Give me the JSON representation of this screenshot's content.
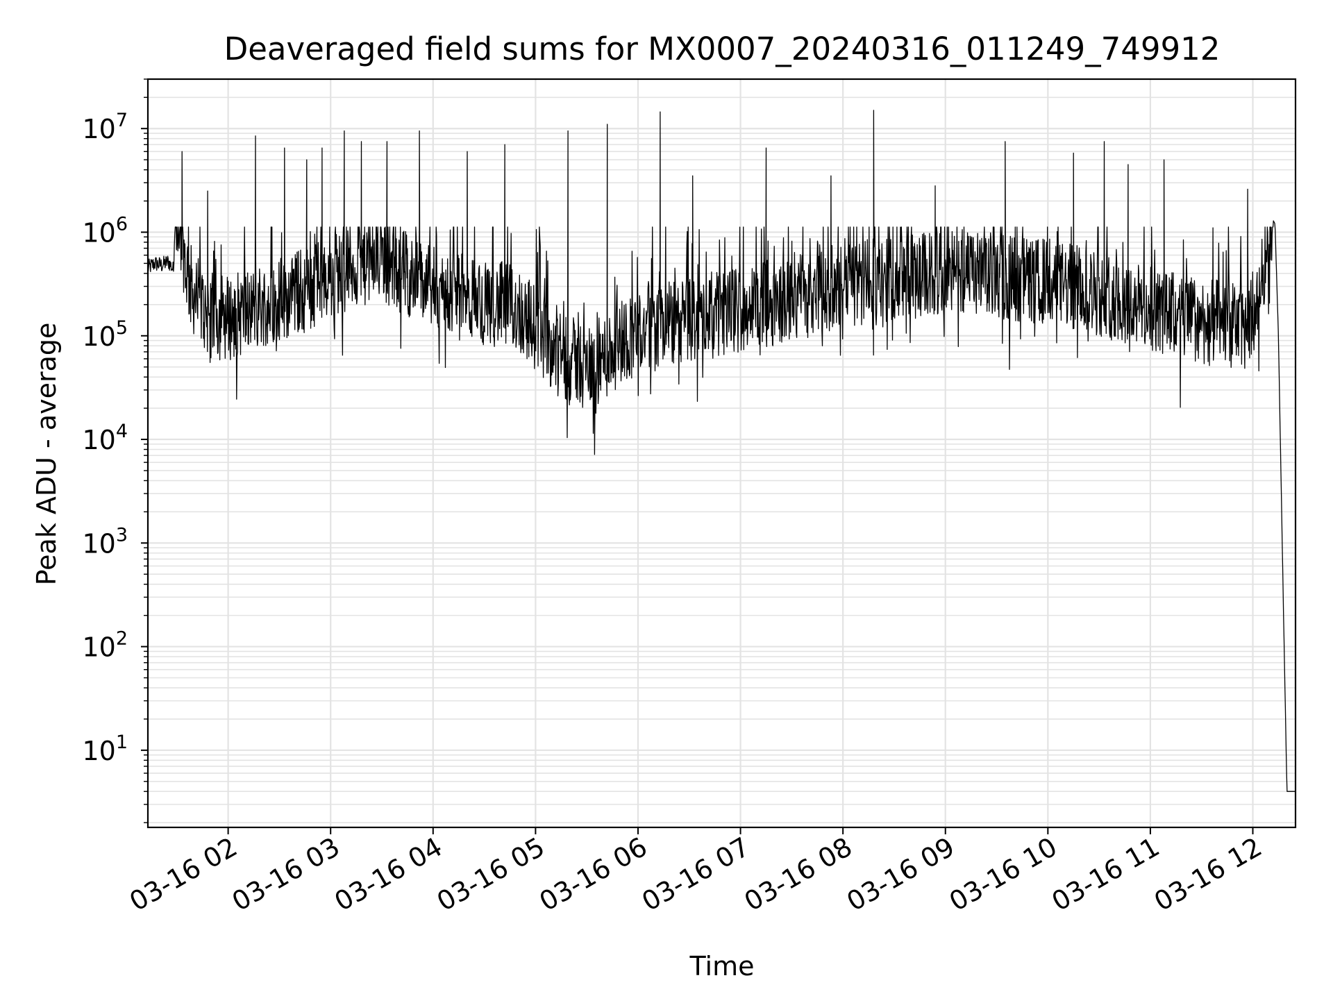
{
  "chart_data": {
    "type": "line",
    "title": "Deaveraged field sums for MX0007_20240316_011249_749912",
    "xlabel": "Time",
    "ylabel": "Peak ADU - average",
    "yscale": "log",
    "ylim": [
      1.8,
      30000000
    ],
    "xlim": [
      "2024-03-16T01:13:00",
      "2024-03-16T12:25:00"
    ],
    "grid": true,
    "legend": "none",
    "line_color": "#000000",
    "grid_color": "#e3e3e3",
    "x_ticks": [
      {
        "t": "2024-03-16T02:00:00",
        "label": "03-16 02"
      },
      {
        "t": "2024-03-16T03:00:00",
        "label": "03-16 03"
      },
      {
        "t": "2024-03-16T04:00:00",
        "label": "03-16 04"
      },
      {
        "t": "2024-03-16T05:00:00",
        "label": "03-16 05"
      },
      {
        "t": "2024-03-16T06:00:00",
        "label": "03-16 06"
      },
      {
        "t": "2024-03-16T07:00:00",
        "label": "03-16 07"
      },
      {
        "t": "2024-03-16T08:00:00",
        "label": "03-16 08"
      },
      {
        "t": "2024-03-16T09:00:00",
        "label": "03-16 09"
      },
      {
        "t": "2024-03-16T10:00:00",
        "label": "03-16 10"
      },
      {
        "t": "2024-03-16T11:00:00",
        "label": "03-16 11"
      },
      {
        "t": "2024-03-16T12:00:00",
        "label": "03-16 12"
      }
    ],
    "y_ticks": [
      {
        "value": 10,
        "base": "10",
        "exp": "1"
      },
      {
        "value": 100,
        "base": "10",
        "exp": "2"
      },
      {
        "value": 1000,
        "base": "10",
        "exp": "3"
      },
      {
        "value": 10000,
        "base": "10",
        "exp": "4"
      },
      {
        "value": 100000,
        "base": "10",
        "exp": "5"
      },
      {
        "value": 1000000,
        "base": "10",
        "exp": "6"
      },
      {
        "value": 10000000,
        "base": "10",
        "exp": "7"
      }
    ],
    "series": [
      {
        "x": [
          "2024-03-16T01:13:00",
          "2024-03-16T01:17:00",
          "2024-03-16T01:21:00",
          "2024-03-16T01:25:00",
          "2024-03-16T01:28:00",
          "2024-03-16T01:29:00",
          "2024-03-16T01:31:00",
          "2024-03-16T01:33:00",
          "2024-03-16T01:35:00",
          "2024-03-16T01:38:00",
          "2024-03-16T01:42:00",
          "2024-03-16T01:46:00",
          "2024-03-16T01:50:00",
          "2024-03-16T01:55:00",
          "2024-03-16T02:00:00",
          "2024-03-16T02:10:00",
          "2024-03-16T02:20:00",
          "2024-03-16T02:30:00",
          "2024-03-16T02:40:00",
          "2024-03-16T02:50:00",
          "2024-03-16T03:00:00",
          "2024-03-16T03:10:00",
          "2024-03-16T03:20:00",
          "2024-03-16T03:30:00",
          "2024-03-16T03:40:00",
          "2024-03-16T03:50:00",
          "2024-03-16T04:00:00",
          "2024-03-16T04:10:00",
          "2024-03-16T04:20:00",
          "2024-03-16T04:30:00",
          "2024-03-16T04:40:00",
          "2024-03-16T04:50:00",
          "2024-03-16T05:00:00",
          "2024-03-16T05:10:00",
          "2024-03-16T05:20:00",
          "2024-03-16T05:30:00",
          "2024-03-16T05:40:00",
          "2024-03-16T05:50:00",
          "2024-03-16T06:00:00",
          "2024-03-16T06:30:00",
          "2024-03-16T07:00:00",
          "2024-03-16T07:30:00",
          "2024-03-16T08:00:00",
          "2024-03-16T08:30:00",
          "2024-03-16T09:00:00",
          "2024-03-16T09:30:00",
          "2024-03-16T10:00:00",
          "2024-03-16T10:30:00",
          "2024-03-16T11:00:00",
          "2024-03-16T11:30:00",
          "2024-03-16T11:55:00",
          "2024-03-16T12:03:00",
          "2024-03-16T12:08:00",
          "2024-03-16T12:11:00",
          "2024-03-16T12:13:00",
          "2024-03-16T12:15:00",
          "2024-03-16T12:18:00",
          "2024-03-16T12:20:00",
          "2024-03-16T12:25:00"
        ],
        "y": [
          450000,
          500000,
          480000,
          520000,
          430000,
          1500000,
          1100000,
          900000,
          500000,
          300000,
          220000,
          180000,
          160000,
          150000,
          150000,
          170000,
          200000,
          230000,
          260000,
          300000,
          380000,
          450000,
          500000,
          550000,
          450000,
          350000,
          280000,
          250000,
          230000,
          210000,
          200000,
          180000,
          120000,
          80000,
          60000,
          50000,
          60000,
          90000,
          110000,
          140000,
          180000,
          230000,
          300000,
          350000,
          400000,
          380000,
          330000,
          260000,
          180000,
          140000,
          120000,
          200000,
          700000,
          1400000,
          1200000,
          100000,
          200,
          4,
          4
        ]
      }
    ],
    "peaks": [
      {
        "t": "2024-03-16T01:33:00",
        "y": 6000000
      },
      {
        "t": "2024-03-16T01:48:00",
        "y": 2500000
      },
      {
        "t": "2024-03-16T02:16:00",
        "y": 8500000
      },
      {
        "t": "2024-03-16T02:33:00",
        "y": 6500000
      },
      {
        "t": "2024-03-16T02:46:00",
        "y": 5000000
      },
      {
        "t": "2024-03-16T02:55:00",
        "y": 6500000
      },
      {
        "t": "2024-03-16T03:08:00",
        "y": 9500000
      },
      {
        "t": "2024-03-16T03:18:00",
        "y": 7500000
      },
      {
        "t": "2024-03-16T03:33:00",
        "y": 7500000
      },
      {
        "t": "2024-03-16T03:52:00",
        "y": 9500000
      },
      {
        "t": "2024-03-16T04:20:00",
        "y": 6000000
      },
      {
        "t": "2024-03-16T04:42:00",
        "y": 7000000
      },
      {
        "t": "2024-03-16T05:19:00",
        "y": 9500000
      },
      {
        "t": "2024-03-16T05:42:00",
        "y": 11000000
      },
      {
        "t": "2024-03-16T06:13:00",
        "y": 14500000
      },
      {
        "t": "2024-03-16T06:32:00",
        "y": 3500000
      },
      {
        "t": "2024-03-16T07:15:00",
        "y": 6500000
      },
      {
        "t": "2024-03-16T07:53:00",
        "y": 3500000
      },
      {
        "t": "2024-03-16T08:18:00",
        "y": 15000000
      },
      {
        "t": "2024-03-16T08:54:00",
        "y": 2800000
      },
      {
        "t": "2024-03-16T09:35:00",
        "y": 7500000
      },
      {
        "t": "2024-03-16T10:15:00",
        "y": 5800000
      },
      {
        "t": "2024-03-16T10:33:00",
        "y": 7500000
      },
      {
        "t": "2024-03-16T10:47:00",
        "y": 4500000
      },
      {
        "t": "2024-03-16T11:08:00",
        "y": 5000000
      },
      {
        "t": "2024-03-16T11:57:00",
        "y": 2600000
      }
    ]
  }
}
